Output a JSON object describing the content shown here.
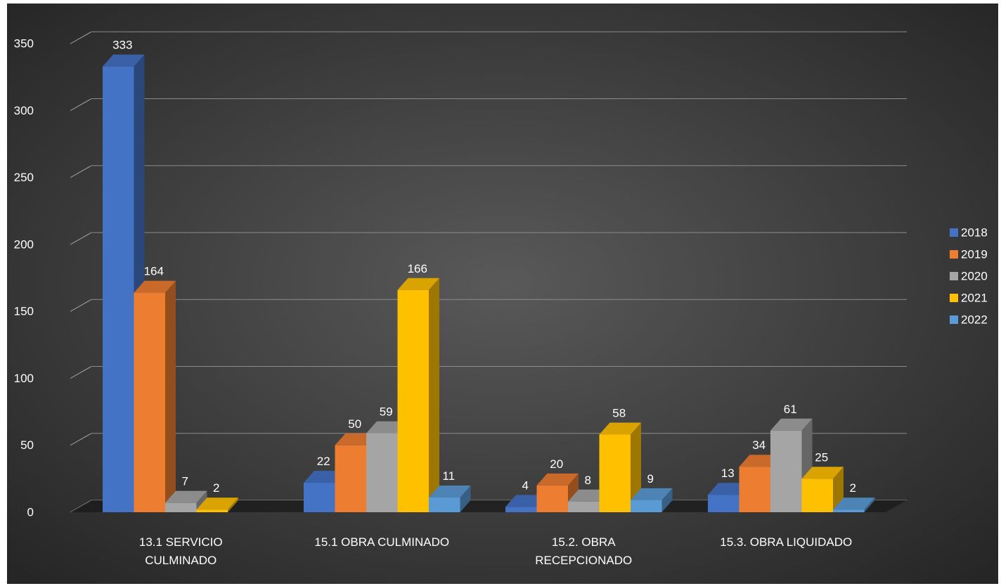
{
  "chart_data": {
    "type": "bar",
    "categories": [
      [
        "13.1 SERVICIO",
        "CULMINADO"
      ],
      [
        "15.1 OBRA CULMINADO"
      ],
      [
        "15.2. OBRA",
        "RECEPCIONADO"
      ],
      [
        "15.3. OBRA LIQUIDADO"
      ]
    ],
    "series": [
      {
        "name": "2018",
        "color": "#4472C4",
        "values": [
          333,
          22,
          4,
          13
        ]
      },
      {
        "name": "2019",
        "color": "#ED7D31",
        "values": [
          164,
          50,
          20,
          34
        ]
      },
      {
        "name": "2020",
        "color": "#A5A5A5",
        "values": [
          7,
          59,
          8,
          61
        ]
      },
      {
        "name": "2021",
        "color": "#FFC000",
        "values": [
          2,
          166,
          58,
          25
        ]
      },
      {
        "name": "2022",
        "color": "#5B9BD5",
        "values": [
          null,
          11,
          9,
          2
        ]
      }
    ],
    "yticks": [
      "0",
      "50",
      "100",
      "150",
      "200",
      "250",
      "300",
      "350"
    ],
    "ylim": [
      0,
      350
    ],
    "grid": true,
    "legend": "right",
    "style": "3d-clustered-column"
  }
}
